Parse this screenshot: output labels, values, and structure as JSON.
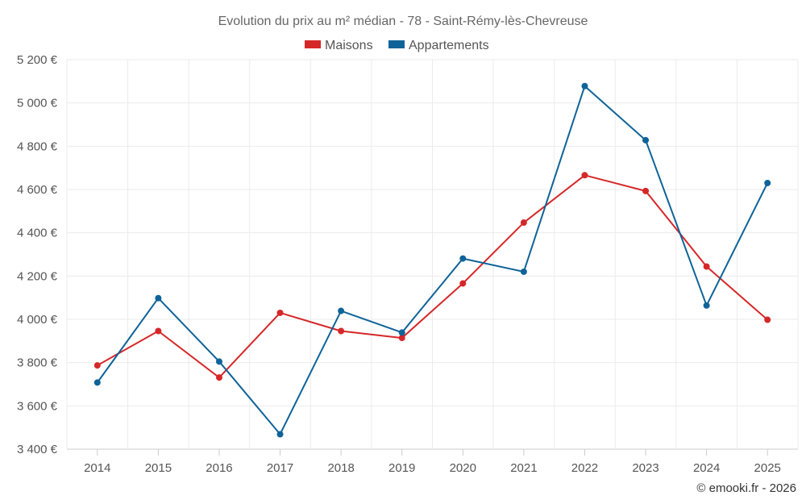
{
  "chart_data": {
    "type": "line",
    "title": "Evolution du prix au m² médian - 78 - Saint-Rémy-lès-Chevreuse",
    "x": [
      "2014",
      "2015",
      "2016",
      "2017",
      "2018",
      "2019",
      "2020",
      "2021",
      "2022",
      "2023",
      "2024",
      "2025"
    ],
    "series": [
      {
        "name": "Maisons",
        "color": "#d62728",
        "values": [
          3787,
          3946,
          3731,
          4030,
          3946,
          3914,
          4166,
          4447,
          4666,
          4593,
          4244,
          3998
        ]
      },
      {
        "name": "Appartements",
        "color": "#0e6398",
        "values": [
          3708,
          4098,
          3805,
          3469,
          4039,
          3939,
          4281,
          4220,
          5078,
          4828,
          4064,
          4630
        ]
      }
    ],
    "ylim": [
      3400,
      5200
    ],
    "yticks": [
      3400,
      3600,
      3800,
      4000,
      4200,
      4400,
      4600,
      4800,
      5000,
      5200
    ],
    "ytick_labels": [
      "3 400 €",
      "3 600 €",
      "3 800 €",
      "4 000 €",
      "4 200 €",
      "4 400 €",
      "4 600 €",
      "4 800 €",
      "5 000 €",
      "5 200 €"
    ],
    "legend_position": "top-center",
    "grid": true
  },
  "credit": "© emooki.fr - 2026"
}
